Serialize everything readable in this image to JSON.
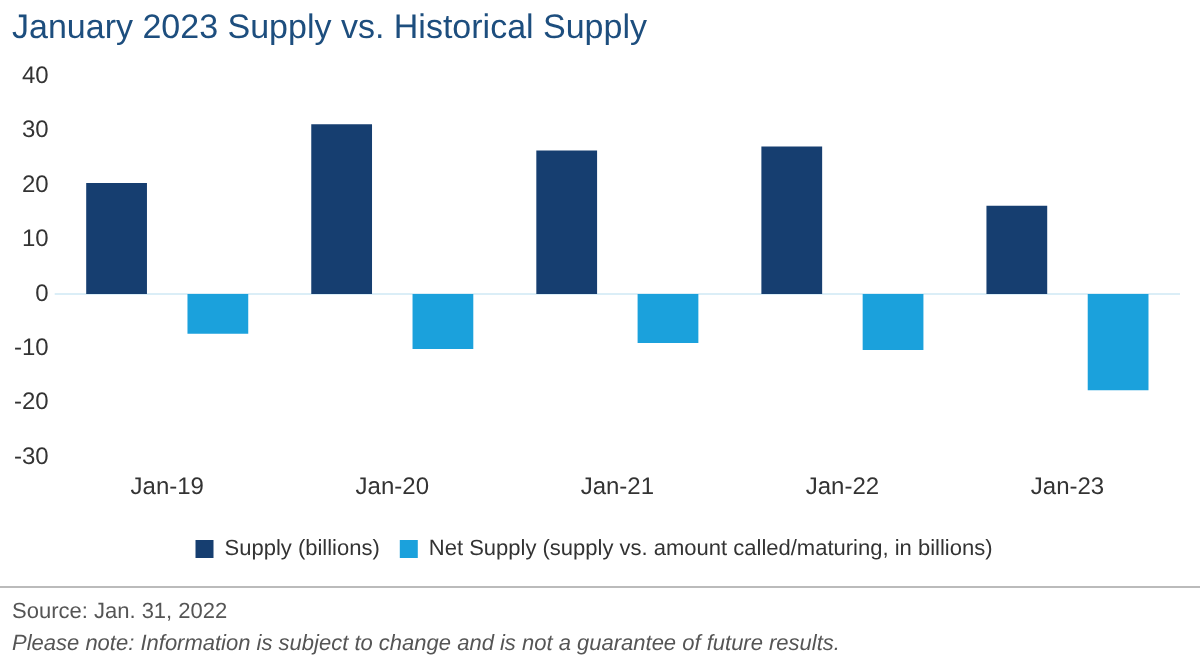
{
  "chart_data": {
    "type": "bar",
    "title": "January 2023 Supply vs. Historical Supply",
    "categories": [
      "Jan-19",
      "Jan-20",
      "Jan-21",
      "Jan-22",
      "Jan-23"
    ],
    "series": [
      {
        "name": "Supply (billions)",
        "color": "#163e70",
        "values": [
          20.4,
          31.2,
          26.4,
          27.1,
          16.2
        ]
      },
      {
        "name": "Net Supply (supply vs. amount called/maturing, in billions)",
        "color": "#1ba1dc",
        "values": [
          -7.3,
          -10.1,
          -9.0,
          -10.3,
          -17.7
        ]
      }
    ],
    "ylim": [
      -30,
      40
    ],
    "yticks": [
      -30,
      -20,
      -10,
      0,
      10,
      20,
      30,
      40
    ],
    "grid": false,
    "ref_lines": [
      {
        "axis": "y",
        "value": 0,
        "color": "#dbeef7"
      }
    ],
    "legend": "bottom",
    "annotations": [
      "Source: Jan. 31, 2022",
      "Please note: Information is subject to change and is not a guarantee of future results."
    ]
  }
}
